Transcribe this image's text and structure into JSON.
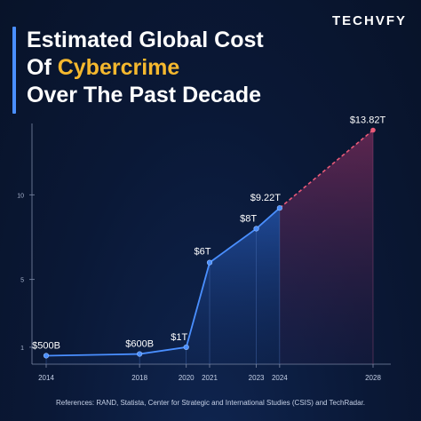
{
  "brand": {
    "logo_text": "TECHVFY"
  },
  "title": {
    "line1": "Estimated Global Cost",
    "line2_prefix": "Of ",
    "line2_highlight": "Cybercrime",
    "line3": "Over The Past Decade"
  },
  "references": "References: RAND, Statista, Center for Strategic and International Studies (CSIS) and TechRadar.",
  "colors": {
    "accent": "#4a8fff",
    "highlight": "#f5b82e",
    "projection": "#e85a78",
    "background": "#0a1836"
  },
  "chart_data": {
    "type": "line",
    "y_ticks": [
      1,
      5,
      10
    ],
    "ylim": [
      0,
      14
    ],
    "xlim": [
      2014,
      2028
    ],
    "x_tick_labels": [
      "2014",
      "2018",
      "2020",
      "2021",
      "2023",
      "2024",
      "2028"
    ],
    "series": [
      {
        "x": [
          2014,
          2018,
          2020,
          2021,
          2023,
          2024
        ],
        "y": [
          0.5,
          0.6,
          1,
          6,
          8,
          9.22
        ],
        "labels": [
          "$500B",
          "$600B",
          "$1T",
          "$6T",
          "$8T",
          "$9.22T"
        ]
      },
      {
        "x": [
          2024,
          2028
        ],
        "y": [
          9.22,
          13.82
        ],
        "labels": [
          "",
          "$13.82T"
        ]
      }
    ]
  }
}
